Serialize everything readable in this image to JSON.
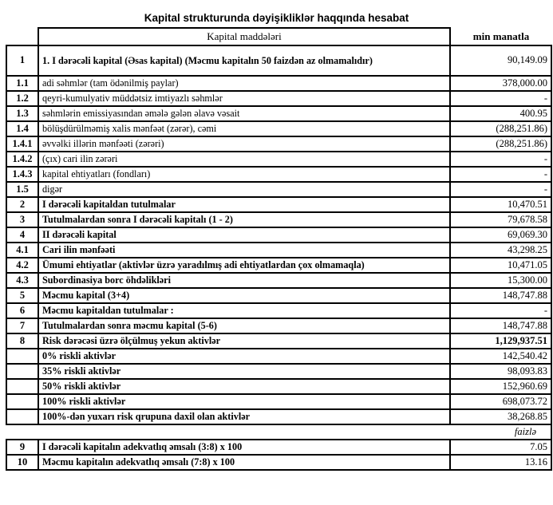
{
  "title": "Kapital strukturunda dəyişikliklər haqqında hesabat",
  "header": {
    "items_label": "Kapital maddələri",
    "unit_label": "min manatla"
  },
  "rows": [
    {
      "num": "1",
      "label": "1. I dərəcəli kapital (Əsas kapital) (Məcmu kapitalın 50 faizdən  az olmamalıdır)",
      "value": "90,149.09",
      "label_bold": true,
      "value_bold": false,
      "tall": true
    },
    {
      "num": "1.1",
      "label": "adi səhmlər (tam ödənilmiş paylar)",
      "value": "378,000.00",
      "label_bold": false,
      "value_bold": false
    },
    {
      "num": "1.2",
      "label": "qeyri-kumulyativ müddətsiz imtiyazlı səhmlər",
      "value": "-",
      "label_bold": false,
      "value_bold": false
    },
    {
      "num": "1.3",
      "label": "səhmlərin emissiyasından əmələ gələn  əlavə vəsait",
      "value": "400.95",
      "label_bold": false,
      "value_bold": false
    },
    {
      "num": "1.4",
      "label": "bölüşdürülməmiş xalis mənfəət (zərər), cəmi",
      "value": "(288,251.86)",
      "label_bold": false,
      "value_bold": false
    },
    {
      "num": "1.4.1",
      "label": "əvvəlki illərin mənfəəti (zərəri)",
      "value": "(288,251.86)",
      "label_bold": false,
      "value_bold": false
    },
    {
      "num": "1.4.2",
      "label": "(çıx) cari ilin zərəri",
      "value": "-",
      "label_bold": false,
      "value_bold": false
    },
    {
      "num": "1.4.3",
      "label": "kapital ehtiyatları (fondları)",
      "value": "-",
      "label_bold": false,
      "value_bold": false
    },
    {
      "num": "1.5",
      "label": "digər",
      "value": "-",
      "label_bold": false,
      "value_bold": false
    },
    {
      "num": "2",
      "label": "I dərəcəli kapitaldan  tutulmalar",
      "value": "10,470.51",
      "label_bold": true,
      "value_bold": false
    },
    {
      "num": "3",
      "label": "Tutulmalardan  sonra I dərəcəli kapitalı (1 - 2)",
      "value": "79,678.58",
      "label_bold": true,
      "value_bold": false
    },
    {
      "num": "4",
      "label": "II dərəcəli  kapital",
      "value": "69,069.30",
      "label_bold": true,
      "value_bold": false
    },
    {
      "num": "4.1",
      "label": "Cari ilin mənfəəti",
      "value": "43,298.25",
      "label_bold": true,
      "value_bold": false
    },
    {
      "num": "4.2",
      "label": "Ümumi ehtiyatlar (aktivlər üzrə yaradılmış adi ehtiyatlardan çox olmamaqla)",
      "value": "10,471.05",
      "label_bold": true,
      "value_bold": false
    },
    {
      "num": "4.3",
      "label": "Subordinasiya borc öhdəlikləri",
      "value": "15,300.00",
      "label_bold": true,
      "value_bold": false
    },
    {
      "num": "5",
      "label": "Məcmu kapital (3+4)",
      "value": "148,747.88",
      "label_bold": true,
      "value_bold": false
    },
    {
      "num": "6",
      "label": "Məcmu kapitaldan tutulmalar :",
      "value": "-",
      "label_bold": true,
      "value_bold": false
    },
    {
      "num": "7",
      "label": "Tutulmalardan sonra məcmu kapital (5-6)",
      "value": "148,747.88",
      "label_bold": true,
      "value_bold": false
    },
    {
      "num": "8",
      "label": "Risk dərəcəsi üzrə ölçülmuş  yekun aktivlər",
      "value": "1,129,937.51",
      "label_bold": true,
      "value_bold": true
    },
    {
      "num": "",
      "label": "0% riskli aktivlər",
      "value": "142,540.42",
      "label_bold": true,
      "value_bold": false
    },
    {
      "num": "",
      "label": "35% riskli aktivlər",
      "value": "98,093.83",
      "label_bold": true,
      "value_bold": false
    },
    {
      "num": "",
      "label": "50% riskli aktivlər",
      "value": "152,960.69",
      "label_bold": true,
      "value_bold": false
    },
    {
      "num": "",
      "label": "100% riskli aktivlər",
      "value": "698,073.72",
      "label_bold": true,
      "value_bold": false
    },
    {
      "num": "",
      "label": "100%-dən yuxarı risk qrupuna daxil olan aktivlər",
      "value": "38,268.85",
      "label_bold": true,
      "value_bold": false
    },
    {
      "type": "unit",
      "value": "faizlə"
    },
    {
      "num": "9",
      "label": "I dərəcəli  kapitalın  adekvatlıq əmsalı (3:8) x 100",
      "value": "7.05",
      "label_bold": true,
      "value_bold": false
    },
    {
      "num": "10",
      "label": "Məcmu kapitalın  adekvatlıq  əmsalı (7:8) x 100",
      "value": "13.16",
      "label_bold": true,
      "value_bold": false
    }
  ]
}
